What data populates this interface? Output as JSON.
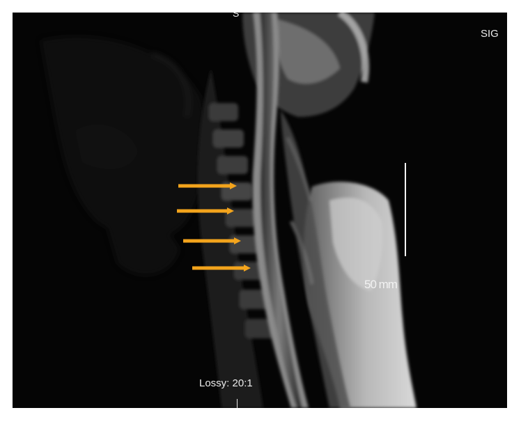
{
  "image": {
    "description_labels": {
      "top_marker": "S",
      "sequence_label": "SIG",
      "scale_label": "50 mm",
      "compression_label": "Lossy: 20:1"
    },
    "colors": {
      "background": "#050505",
      "arrow": "#f3a41c",
      "text": "#ececec"
    },
    "arrow_count": 4
  }
}
